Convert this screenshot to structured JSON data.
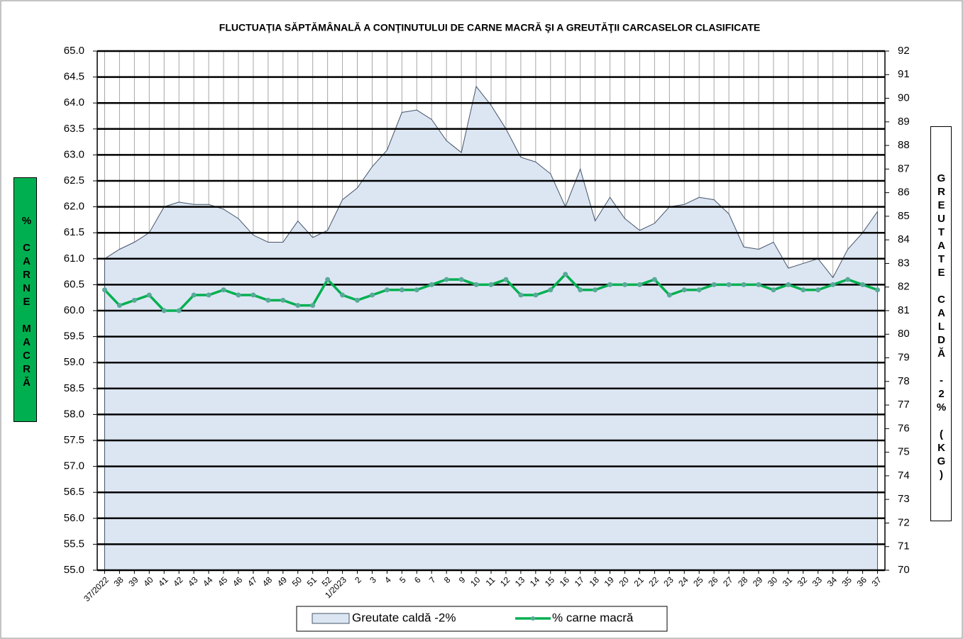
{
  "chart_data": {
    "type": "combo",
    "title": "FLUCTUAŢIA SĂPTĂMÂNALĂ  A CONŢINUTULUI DE CARNE MACRĂ ŞI A GREUTĂŢII CARCASELOR CLASIFICATE",
    "y_label": "% CARNE MACRĂ",
    "y2_label": "GREUTATE CALDĂ -2% (KG)",
    "categories": [
      "37/2022",
      "38",
      "39",
      "40",
      "41",
      "42",
      "43",
      "44",
      "45",
      "46",
      "47",
      "48",
      "49",
      "50",
      "51",
      "52",
      "1/2023",
      "2",
      "3",
      "4",
      "5",
      "6",
      "7",
      "8",
      "9",
      "10",
      "11",
      "12",
      "13",
      "14",
      "15",
      "16",
      "17",
      "18",
      "19",
      "20",
      "21",
      "22",
      "23",
      "24",
      "25",
      "26",
      "27",
      "28",
      "29",
      "30",
      "31",
      "32",
      "33",
      "34",
      "35",
      "36",
      "37"
    ],
    "series": [
      {
        "name": "Greutate caldă -2%",
        "type": "area",
        "axis": "y2",
        "color": "#dce6f2",
        "line_color": "#44546a",
        "values": [
          83.2,
          83.6,
          83.9,
          84.3,
          85.4,
          85.6,
          85.5,
          85.5,
          85.3,
          84.9,
          84.2,
          83.9,
          83.9,
          84.8,
          84.1,
          84.4,
          85.7,
          86.2,
          87.1,
          87.8,
          89.4,
          89.5,
          89.1,
          88.2,
          87.7,
          90.5,
          89.7,
          88.7,
          87.5,
          87.3,
          86.8,
          85.4,
          87.0,
          84.8,
          85.8,
          84.9,
          84.4,
          84.7,
          85.4,
          85.5,
          85.8,
          85.7,
          85.1,
          83.7,
          83.6,
          83.9,
          82.8,
          83.0,
          83.2,
          82.4,
          83.6,
          84.3,
          85.2
        ]
      },
      {
        "name": "% carne macră",
        "type": "line",
        "axis": "y",
        "color": "#00b050",
        "marker_color": "#5aa99a",
        "values": [
          60.4,
          60.1,
          60.2,
          60.3,
          60.0,
          60.0,
          60.3,
          60.3,
          60.4,
          60.3,
          60.3,
          60.2,
          60.2,
          60.1,
          60.1,
          60.6,
          60.3,
          60.2,
          60.3,
          60.4,
          60.4,
          60.4,
          60.5,
          60.6,
          60.6,
          60.5,
          60.5,
          60.6,
          60.3,
          60.3,
          60.4,
          60.7,
          60.4,
          60.4,
          60.5,
          60.5,
          60.5,
          60.6,
          60.3,
          60.4,
          60.4,
          60.5,
          60.5,
          60.5,
          60.5,
          60.4,
          60.5,
          60.4,
          60.4,
          60.5,
          60.6,
          60.5,
          60.4
        ]
      }
    ],
    "ylim": [
      55,
      65
    ],
    "yticks": [
      {
        "value": 55,
        "label": "55.0"
      },
      {
        "value": 55.5,
        "label": "55.5"
      },
      {
        "value": 56,
        "label": "56.0"
      },
      {
        "value": 56.5,
        "label": "56.5"
      },
      {
        "value": 57,
        "label": "57.0"
      },
      {
        "value": 57.5,
        "label": "57.5"
      },
      {
        "value": 58,
        "label": "58.0"
      },
      {
        "value": 58.5,
        "label": "58.5"
      },
      {
        "value": 59,
        "label": "59.0"
      },
      {
        "value": 59.5,
        "label": "59.5"
      },
      {
        "value": 60,
        "label": "60.0"
      },
      {
        "value": 60.5,
        "label": "60.5"
      },
      {
        "value": 61,
        "label": "61.0"
      },
      {
        "value": 61.5,
        "label": "61.5"
      },
      {
        "value": 62,
        "label": "62.0"
      },
      {
        "value": 62.5,
        "label": "62.5"
      },
      {
        "value": 63,
        "label": "63.0"
      },
      {
        "value": 63.5,
        "label": "63.5"
      },
      {
        "value": 64,
        "label": "64.0"
      },
      {
        "value": 64.5,
        "label": "64.5"
      },
      {
        "value": 65,
        "label": "65.0"
      }
    ],
    "y2lim": [
      70,
      92
    ],
    "y2ticks": [
      70,
      71,
      72,
      73,
      74,
      75,
      76,
      77,
      78,
      79,
      80,
      81,
      82,
      83,
      84,
      85,
      86,
      87,
      88,
      89,
      90,
      91,
      92
    ],
    "grid": true,
    "legend": "bottom"
  }
}
